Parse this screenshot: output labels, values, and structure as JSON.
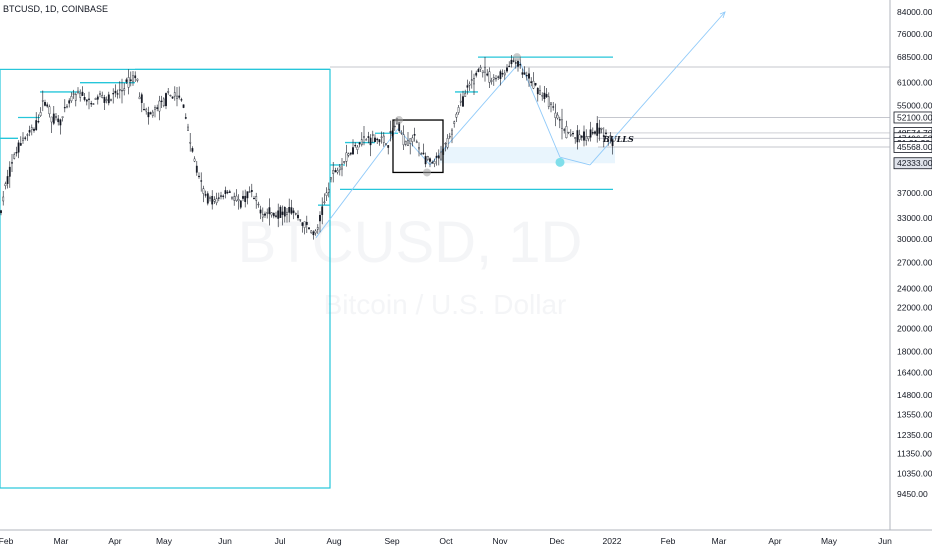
{
  "header": {
    "title": "BTCUSD, 1D, COINBASE"
  },
  "watermark": {
    "symbol": "BTCUSD, 1D",
    "name": "Bitcoin / U.S. Dollar"
  },
  "annotation_text": "BULLS",
  "colors": {
    "cyan": "#26c6da",
    "candle": "#131722",
    "box": "#000000",
    "trend": "#90caf9",
    "zone": "#e3f2fd",
    "circle_gray": "#9e9e9e",
    "circle_cyan": "#80deea"
  },
  "chart_data": {
    "type": "candlestick",
    "title": "BTCUSD, 1D, COINBASE",
    "y_axis": {
      "scale": "log",
      "side": "right",
      "range": [
        8700,
        86000
      ],
      "ticks": [
        84000,
        76000,
        68500,
        61000,
        55000,
        37000,
        33000,
        30000,
        27000,
        24000,
        22000,
        20000,
        18000,
        16400,
        14800,
        13550,
        12350,
        11350,
        10350,
        9450
      ]
    },
    "x_axis": {
      "ticks": [
        "Feb",
        "Mar",
        "Apr",
        "May",
        "Jun",
        "Jul",
        "Aug",
        "Sep",
        "Oct",
        "Nov",
        "Dec",
        "2022",
        "Feb",
        "Mar",
        "Apr",
        "May",
        "Jun"
      ]
    },
    "price_badges": [
      {
        "label": "52100.00",
        "value": 52100
      },
      {
        "label": "48574.70",
        "value": 48574.7
      },
      {
        "label": "47406.53",
        "value": 47406.53
      },
      {
        "label": "21:01:30",
        "value": 46400
      },
      {
        "label": "45568.00",
        "value": 45568
      },
      {
        "label": "42333.00",
        "value": 42333
      }
    ],
    "ohlc_path": [
      [
        0,
        33000
      ],
      [
        6,
        38500
      ],
      [
        15,
        44000
      ],
      [
        22,
        47000
      ],
      [
        35,
        49500
      ],
      [
        45,
        56500
      ],
      [
        52,
        52000
      ],
      [
        62,
        51500
      ],
      [
        72,
        57000
      ],
      [
        82,
        58000
      ],
      [
        90,
        55000
      ],
      [
        100,
        57500
      ],
      [
        110,
        56500
      ],
      [
        122,
        59000
      ],
      [
        130,
        61500
      ],
      [
        136,
        63000
      ],
      [
        140,
        58000
      ],
      [
        148,
        52000
      ],
      [
        160,
        55000
      ],
      [
        172,
        58000
      ],
      [
        183,
        56000
      ],
      [
        190,
        47000
      ],
      [
        198,
        40000
      ],
      [
        205,
        36500
      ],
      [
        215,
        35500
      ],
      [
        228,
        37500
      ],
      [
        240,
        35000
      ],
      [
        250,
        37000
      ],
      [
        262,
        34000
      ],
      [
        275,
        33500
      ],
      [
        290,
        34500
      ],
      [
        305,
        32000
      ],
      [
        316,
        30500
      ],
      [
        324,
        35000
      ],
      [
        332,
        40000
      ],
      [
        345,
        43000
      ],
      [
        360,
        47000
      ],
      [
        374,
        47500
      ],
      [
        388,
        46500
      ],
      [
        397,
        51000
      ],
      [
        405,
        46500
      ],
      [
        415,
        47500
      ],
      [
        425,
        43000
      ],
      [
        433,
        42000
      ],
      [
        442,
        44000
      ],
      [
        450,
        48000
      ],
      [
        460,
        55000
      ],
      [
        472,
        61000
      ],
      [
        480,
        65500
      ],
      [
        492,
        61500
      ],
      [
        505,
        64000
      ],
      [
        515,
        68000
      ],
      [
        522,
        64000
      ],
      [
        535,
        60000
      ],
      [
        548,
        56500
      ],
      [
        558,
        52000
      ],
      [
        566,
        49000
      ],
      [
        578,
        47500
      ],
      [
        590,
        48500
      ],
      [
        600,
        49500
      ],
      [
        606,
        47500
      ],
      [
        613,
        46400
      ]
    ],
    "channel_steps_upper": [
      {
        "x0": 0,
        "x1": 18,
        "price": 47400
      },
      {
        "x0": 18,
        "x1": 40,
        "price": 52100
      },
      {
        "x0": 40,
        "x1": 80,
        "price": 58500
      },
      {
        "x0": 80,
        "x1": 135,
        "price": 61000
      },
      {
        "x0": 135,
        "x1": 330,
        "price": 64800
      },
      {
        "x0": 345,
        "x1": 375,
        "price": 46500
      },
      {
        "x0": 375,
        "x1": 398,
        "price": 48500
      },
      {
        "x0": 455,
        "x1": 478,
        "price": 58500
      },
      {
        "x0": 478,
        "x1": 613,
        "price": 68500
      }
    ],
    "channel_steps_lower": [
      {
        "x0": 318,
        "x1": 330,
        "price": 35000
      },
      {
        "x0": 330,
        "x1": 345,
        "price": 42000
      },
      {
        "x0": 340,
        "x1": 613,
        "price": 37600
      }
    ],
    "levels": [
      65500,
      52100,
      48574.7,
      47406.53,
      45568
    ],
    "box_range": [
      40600,
      51500
    ],
    "zone_range": [
      42333,
      45568
    ],
    "circles": [
      51500,
      40600,
      68500,
      42500
    ]
  }
}
